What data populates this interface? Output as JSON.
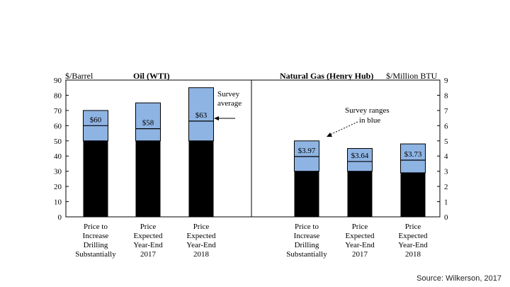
{
  "source_note": "Source: Wilkerson, 2017",
  "colors": {
    "range": "#8eb4e3",
    "base": "#000000",
    "border": "#000000"
  },
  "chart_data": [
    {
      "type": "bar",
      "title": "Oil (WTI)",
      "ylabel": "$/Barrel",
      "ylim": [
        0,
        90
      ],
      "yticks": [
        0,
        10,
        20,
        30,
        40,
        50,
        60,
        70,
        80,
        90
      ],
      "categories": [
        "Price to Increase Drilling Substantially",
        "Price Expected Year-End 2017",
        "Price Expected Year-End 2018"
      ],
      "category_lines": [
        [
          "Price to",
          "Increase",
          "Drilling",
          "Substantially"
        ],
        [
          "Price",
          "Expected",
          "Year-End",
          "2017"
        ],
        [
          "Price",
          "Expected",
          "Year-End",
          "2018"
        ]
      ],
      "range_low": [
        50,
        50,
        50
      ],
      "range_high": [
        70,
        75,
        85
      ],
      "survey_average": [
        60,
        58,
        63
      ],
      "data_labels": [
        "$60",
        "$58",
        "$63"
      ],
      "annotation": {
        "text_lines": [
          "Survey",
          "average"
        ]
      }
    },
    {
      "type": "bar",
      "title": "Natural Gas (Henry Hub)",
      "ylabel": "$/Million BTU",
      "ylim": [
        0,
        9
      ],
      "yticks": [
        0,
        1,
        2,
        3,
        4,
        5,
        6,
        7,
        8,
        9
      ],
      "categories": [
        "Price to Increase Drilling Substantially",
        "Price Expected Year-End 2017",
        "Price Expected Year-End 2018"
      ],
      "category_lines": [
        [
          "Price to",
          "Increase",
          "Drilling",
          "Substantially"
        ],
        [
          "Price",
          "Expected",
          "Year-End",
          "2017"
        ],
        [
          "Price",
          "Expected",
          "Year-End",
          "2018"
        ]
      ],
      "range_low": [
        3.0,
        3.0,
        2.9
      ],
      "range_high": [
        5.0,
        4.5,
        4.8
      ],
      "survey_average": [
        3.97,
        3.64,
        3.73
      ],
      "data_labels": [
        "$3.97",
        "$3.64",
        "$3.73"
      ],
      "annotation": {
        "text_lines": [
          "Survey ranges",
          "in blue"
        ]
      }
    }
  ]
}
